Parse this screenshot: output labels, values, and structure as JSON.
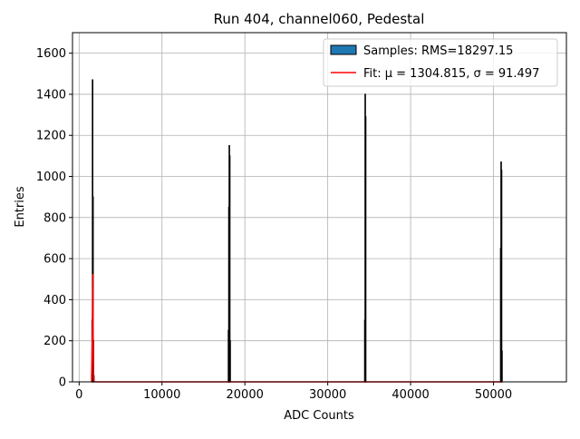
{
  "chart_data": {
    "type": "histogram",
    "title": "Run 404, channel060, Pedestal",
    "x_label": "ADC Counts",
    "y_label": "Entries",
    "bins": [
      1550,
      1600,
      1650,
      1700,
      1750,
      1800,
      18000,
      18050,
      18100,
      18150,
      18200,
      18250,
      34450,
      34500,
      34550,
      34600,
      50850,
      50900,
      50950,
      51000,
      51050
    ],
    "counts": [
      300,
      1470,
      900,
      200,
      30,
      0,
      250,
      850,
      1150,
      1100,
      200,
      0,
      300,
      1400,
      1290,
      0,
      650,
      1070,
      1030,
      150
    ],
    "hist_name": "Samples: RMS=18297.15",
    "hist_color": "#1f77b4",
    "edge_color": "#000000",
    "fit": {
      "name": "Fit: μ = 1304.815, σ = 91.497",
      "color": "#ff0000",
      "x": [
        1500,
        1600,
        1650,
        1700,
        1750,
        1800,
        2000,
        51000
      ],
      "values": [
        0,
        250,
        525,
        200,
        20,
        2,
        0,
        0
      ]
    },
    "xlim": [
      -800,
      58800
    ],
    "ylim": [
      0,
      1700
    ],
    "xticks": [
      0,
      10000,
      20000,
      30000,
      40000,
      50000
    ],
    "yticks": [
      0,
      200,
      400,
      600,
      800,
      1000,
      1200,
      1400,
      1600
    ],
    "grid": true,
    "legend": "upper right"
  }
}
